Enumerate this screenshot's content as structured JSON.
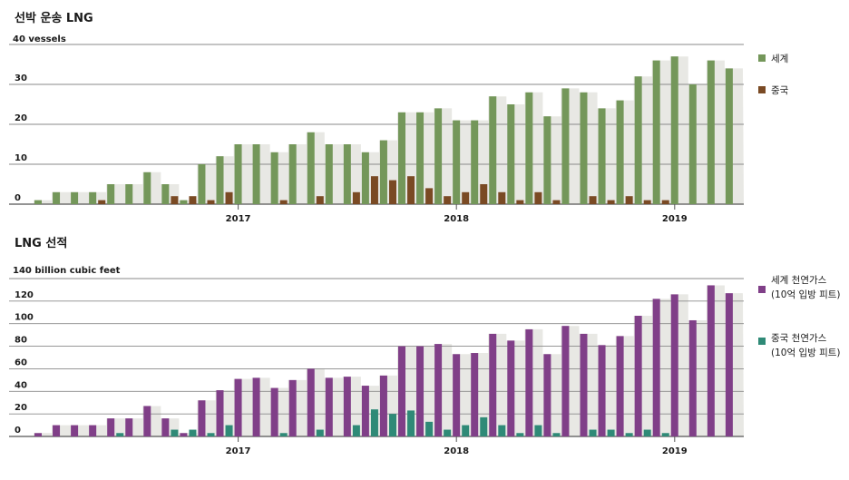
{
  "chart_data": [
    {
      "type": "bar",
      "title": "선박 운송 LNG",
      "unit_label": "40 vessels",
      "y_ticks": [
        "30",
        "20",
        "10",
        "0"
      ],
      "year_ticks": [
        {
          "label": "2017",
          "month_index": 12
        },
        {
          "label": "2018",
          "month_index": 24
        },
        {
          "label": "2019",
          "month_index": 36
        }
      ],
      "ylim": [
        0,
        40
      ],
      "series": [
        {
          "name": "세계",
          "color": "#74975a",
          "values": [
            1,
            3,
            3,
            3,
            5,
            5,
            8,
            5,
            1,
            10,
            12,
            15,
            15,
            13,
            15,
            18,
            15,
            15,
            13,
            16,
            23,
            23,
            24,
            21,
            21,
            27,
            25,
            28,
            22,
            29,
            28,
            24,
            26,
            32,
            36,
            37,
            30,
            36,
            34
          ]
        },
        {
          "name": "중국",
          "color": "#7a4a24",
          "values": [
            0,
            0,
            0,
            0,
            1,
            0,
            0,
            0,
            2,
            2,
            1,
            3,
            0,
            0,
            1,
            0,
            2,
            0,
            3,
            7,
            6,
            7,
            4,
            2,
            3,
            5,
            3,
            1,
            3,
            1,
            0,
            2,
            1,
            2,
            1,
            1,
            0,
            0,
            0
          ]
        }
      ],
      "legend": [
        "세계",
        "중국"
      ]
    },
    {
      "type": "bar",
      "title": "LNG 선적",
      "unit_label": "140 billion cubic feet",
      "y_ticks": [
        "120",
        "100",
        "80",
        "60",
        "40",
        "20",
        "0"
      ],
      "year_ticks": [
        {
          "label": "2017",
          "month_index": 12
        },
        {
          "label": "2018",
          "month_index": 24
        },
        {
          "label": "2019",
          "month_index": 36
        }
      ],
      "ylim": [
        0,
        140
      ],
      "series": [
        {
          "name": "세계 천연가스 (10억 입방 피트)",
          "color": "#803f88",
          "values": [
            3,
            10,
            10,
            10,
            16,
            16,
            27,
            16,
            3,
            32,
            41,
            51,
            52,
            43,
            50,
            60,
            52,
            53,
            45,
            54,
            80,
            80,
            82,
            73,
            74,
            91,
            85,
            95,
            73,
            98,
            91,
            81,
            89,
            107,
            122,
            126,
            103,
            134,
            127
          ]
        },
        {
          "name": "중국 천연가스 (10억 입방 피트)",
          "color": "#2f8a77",
          "values": [
            0,
            0,
            0,
            0,
            0,
            3,
            0,
            0,
            6,
            6,
            3,
            10,
            0,
            0,
            3,
            0,
            6,
            0,
            10,
            24,
            20,
            23,
            13,
            6,
            10,
            17,
            10,
            3,
            10,
            3,
            0,
            6,
            6,
            3,
            6,
            3,
            0,
            0,
            0
          ]
        }
      ],
      "legend": [
        {
          "line1": "세계 천연가스",
          "line2": "(10억 입방 피트)"
        },
        {
          "line1": "중국 천연가스",
          "line2": "(10억 입방 피트)"
        }
      ]
    }
  ]
}
